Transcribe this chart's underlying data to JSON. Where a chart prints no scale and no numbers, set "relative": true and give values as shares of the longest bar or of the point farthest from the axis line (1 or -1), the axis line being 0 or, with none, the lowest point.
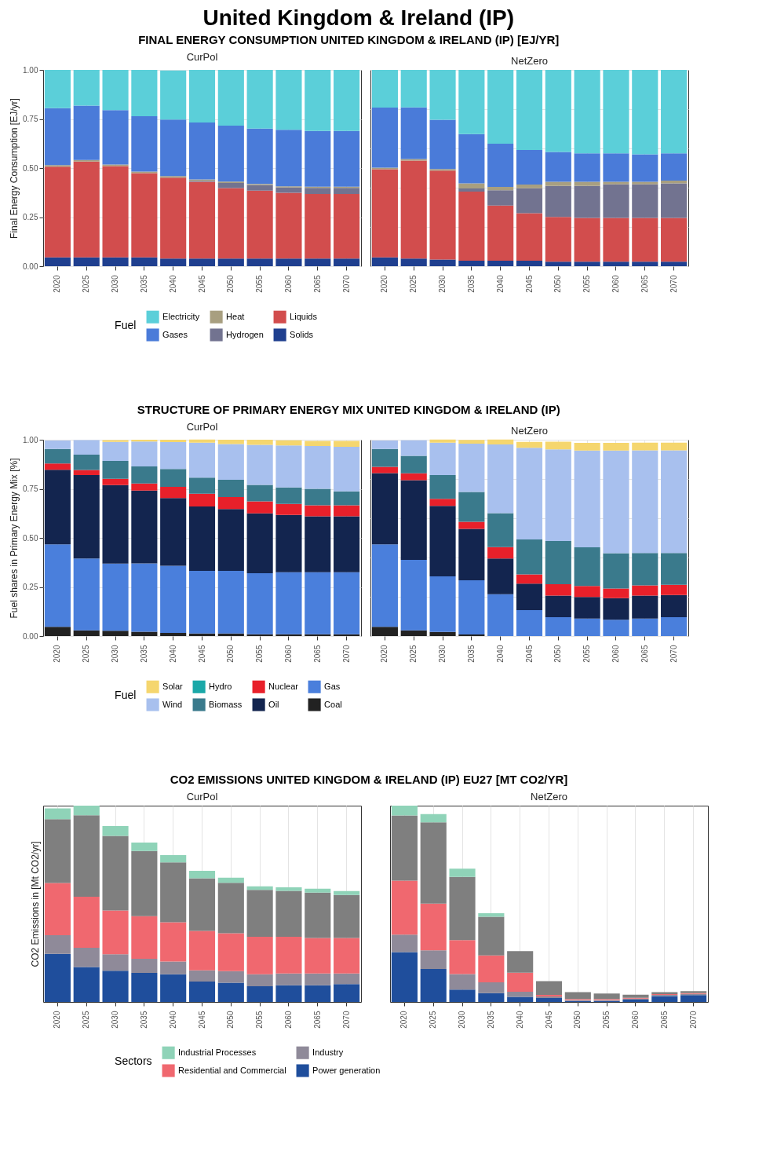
{
  "chart_data": [
    {
      "type": "other",
      "title": "United Kingdom & Ireland (IP)"
    },
    {
      "type": "bar",
      "subtitle": "FINAL ENERGY CONSUMPTION UNITED KINGDOM & IRELAND (IP) [EJ/YR]",
      "title": "CurPol",
      "ylabel": "Final Energy Consumption [EJ/yr]",
      "legend_title": "Fuel",
      "legend": "bottom",
      "stacked": true,
      "grid": true,
      "ylim": [
        0,
        1
      ],
      "yticks": [
        {
          "value": 0,
          "label": "0.00"
        },
        {
          "value": 0.25,
          "label": "0.25"
        },
        {
          "value": 0.5,
          "label": "0.50"
        },
        {
          "value": 0.75,
          "label": "0.75"
        },
        {
          "value": 1,
          "label": "1.00"
        }
      ],
      "categories": [
        "2020",
        "2025",
        "2030",
        "2035",
        "2040",
        "2045",
        "2050",
        "2055",
        "2060",
        "2065",
        "2070"
      ],
      "series": [
        {
          "name": "Solids",
          "color": "#1f3f8f",
          "values": [
            0.045,
            0.045,
            0.045,
            0.045,
            0.039,
            0.039,
            0.039,
            0.039,
            0.039,
            0.039,
            0.039
          ]
        },
        {
          "name": "Liquids",
          "color": "#d24d4d",
          "values": [
            0.462,
            0.488,
            0.465,
            0.429,
            0.412,
            0.391,
            0.359,
            0.346,
            0.335,
            0.329,
            0.329
          ]
        },
        {
          "name": "Hydrogen",
          "color": "#727390",
          "values": [
            0,
            0,
            0,
            0,
            null,
            0.005,
            0.026,
            0.028,
            0.027,
            0.031,
            0.031
          ]
        },
        {
          "name": "Heat",
          "color": "#a89f80",
          "values": [
            0.008,
            0.008,
            0.008,
            0.008,
            0.008,
            0.007,
            0.007,
            0.006,
            0.006,
            0.006,
            0.006
          ]
        },
        {
          "name": "Gases",
          "color": "#4a7bd9",
          "values": [
            0.29,
            0.277,
            0.277,
            0.282,
            0.288,
            0.29,
            0.285,
            0.282,
            0.288,
            0.284,
            0.284
          ]
        },
        {
          "name": "Electricity",
          "color": "#5bcfd9",
          "values": [
            0.195,
            0.182,
            0.205,
            0.236,
            0.25,
            0.268,
            0.284,
            0.299,
            0.305,
            0.311,
            0.311
          ]
        }
      ]
    },
    {
      "type": "bar",
      "title": "NetZero",
      "tick_labels": "x",
      "stacked": true,
      "grid": true,
      "ylim": [
        0,
        1
      ],
      "categories": [
        "2020",
        "2025",
        "2030",
        "2035",
        "2040",
        "2045",
        "2050",
        "2055",
        "2060",
        "2065",
        "2070"
      ],
      "series": [
        {
          "color": "#1f3f8f",
          "values": [
            0.045,
            0.039,
            0.034,
            0.028,
            0.028,
            0.028,
            0.023,
            0.023,
            0.023,
            0.023,
            0.023
          ]
        },
        {
          "color": "#d24d4d",
          "values": [
            0.449,
            0.499,
            0.453,
            0.352,
            0.281,
            0.242,
            0.228,
            0.223,
            0.223,
            0.223,
            0.223
          ]
        },
        {
          "color": "#727390",
          "values": [
            0,
            0,
            0,
            0.016,
            0.078,
            0.127,
            0.158,
            0.163,
            0.171,
            0.171,
            0.176
          ]
        },
        {
          "color": "#a89f80",
          "values": [
            0.008,
            0.008,
            0.008,
            0.026,
            0.017,
            0.019,
            0.021,
            0.021,
            0.013,
            0.013,
            0.014
          ]
        },
        {
          "color": "#4a7bd9",
          "values": [
            0.306,
            0.263,
            0.251,
            0.251,
            0.22,
            0.176,
            0.152,
            0.145,
            0.145,
            0.14,
            0.139
          ]
        },
        {
          "color": "#5bcfd9",
          "values": [
            0.192,
            0.191,
            0.254,
            0.327,
            0.376,
            0.408,
            0.418,
            0.425,
            0.425,
            0.43,
            0.425
          ]
        }
      ]
    },
    {
      "type": "bar",
      "subtitle": "STRUCTURE OF PRIMARY ENERGY MIX UNITED KINGDOM & IRELAND (IP)",
      "title": "CurPol",
      "ylabel": "Fuel shares in Primary Energy Mix [%]",
      "legend_title": "Fuel",
      "legend": "bottom",
      "stacked": true,
      "grid": true,
      "ylim": [
        0,
        1
      ],
      "yticks": [
        {
          "value": 0,
          "label": "0.00"
        },
        {
          "value": 0.25,
          "label": "0.25"
        },
        {
          "value": 0.5,
          "label": "0.50"
        },
        {
          "value": 0.75,
          "label": "0.75"
        },
        {
          "value": 1,
          "label": "1.00"
        }
      ],
      "categories": [
        "2020",
        "2025",
        "2030",
        "2035",
        "2040",
        "2045",
        "2050",
        "2055",
        "2060",
        "2065",
        "2070"
      ],
      "series": [
        {
          "name": "Coal",
          "color": "#222222",
          "values": [
            0.047,
            0.029,
            0.027,
            0.022,
            0.016,
            0.013,
            0.013,
            0.009,
            0.009,
            0.009,
            0.009
          ]
        },
        {
          "name": "Gas",
          "color": "#4a7fdc",
          "values": [
            0.42,
            0.366,
            0.342,
            0.348,
            0.342,
            0.319,
            0.319,
            0.311,
            0.316,
            0.316,
            0.316
          ]
        },
        {
          "name": "Oil",
          "color": "#13254f",
          "values": [
            0.38,
            0.425,
            0.4,
            0.371,
            0.345,
            0.328,
            0.315,
            0.305,
            0.292,
            0.285,
            0.285
          ]
        },
        {
          "name": "Nuclear",
          "color": "#e8202a",
          "values": [
            0.032,
            0.026,
            0.032,
            0.036,
            0.057,
            0.065,
            0.061,
            0.061,
            0.056,
            0.056,
            0.056
          ]
        },
        {
          "name": "Biomass",
          "color": "#3a7a8c",
          "values": [
            0.074,
            0.078,
            0.091,
            0.087,
            0.091,
            0.082,
            0.088,
            0.084,
            0.084,
            0.084,
            0.071
          ]
        },
        {
          "name": "Hydro",
          "color": "#1aa8a8",
          "values": [
            0,
            0,
            0,
            0,
            0,
            0,
            0,
            0,
            0,
            0,
            0
          ]
        },
        {
          "name": "Wind",
          "color": "#a8c0ee",
          "values": [
            0.043,
            0.074,
            0.097,
            0.127,
            0.137,
            0.178,
            0.182,
            0.204,
            0.214,
            0.218,
            0.227
          ]
        },
        {
          "name": "Solar",
          "color": "#f5d66e",
          "values": [
            0,
            0,
            0.009,
            0.009,
            0.012,
            0.016,
            0.022,
            0.026,
            0.026,
            0.026,
            0.03
          ]
        }
      ]
    },
    {
      "type": "bar",
      "title": "NetZero",
      "tick_labels": "x",
      "stacked": true,
      "grid": true,
      "ylim": [
        0,
        1
      ],
      "categories": [
        "2020",
        "2025",
        "2030",
        "2035",
        "2040",
        "2045",
        "2050",
        "2055",
        "2060",
        "2065",
        "2070"
      ],
      "series": [
        {
          "color": "#222222",
          "values": [
            0.047,
            0.029,
            0.021,
            0.008,
            0,
            0,
            0,
            0,
            0,
            0,
            0
          ]
        },
        {
          "color": "#4a7fdc",
          "values": [
            0.42,
            0.359,
            0.283,
            0.276,
            0.213,
            0.132,
            0.096,
            0.089,
            0.083,
            0.089,
            0.096
          ]
        },
        {
          "color": "#13254f",
          "values": [
            0.363,
            0.406,
            0.359,
            0.262,
            0.182,
            0.135,
            0.11,
            0.11,
            0.11,
            0.117,
            0.113
          ]
        },
        {
          "color": "#e8202a",
          "values": [
            0.032,
            0.035,
            0.036,
            0.036,
            0.058,
            0.047,
            0.058,
            0.056,
            0.049,
            0.052,
            0.052
          ]
        },
        {
          "color": "#3a7a8c",
          "values": [
            0.091,
            0.089,
            0.121,
            0.152,
            0.173,
            0.178,
            0.22,
            0.197,
            0.18,
            0.165,
            0.162
          ]
        },
        {
          "color": "#1aa8a8",
          "values": [
            0,
            0,
            0,
            0,
            0,
            0,
            0,
            0,
            0,
            0,
            0
          ]
        },
        {
          "color": "#a8c0ee",
          "values": [
            0.043,
            0.079,
            0.165,
            0.246,
            0.35,
            0.467,
            0.467,
            0.493,
            0.523,
            0.523,
            0.523
          ]
        },
        {
          "color": "#f5d66e",
          "values": [
            0,
            0,
            0.016,
            0.019,
            0.025,
            0.03,
            0.039,
            0.039,
            0.039,
            0.039,
            0.039
          ]
        }
      ]
    },
    {
      "type": "bar",
      "subtitle": "CO2 EMISSIONS UNITED KINGDOM & IRELAND (IP) EU27 [MT CO2/YR]",
      "title": "CurPol",
      "ylabel": "CO2 Emissions in [Mt CO2/yr]",
      "legend_title": "Sectors",
      "legend": "bottom",
      "stacked": true,
      "grid": "x",
      "relative": true,
      "categories": [
        "2020",
        "2025",
        "2030",
        "2035",
        "2040",
        "2045",
        "2050",
        "2055",
        "2060",
        "2065",
        "2070"
      ],
      "series": [
        {
          "name": "Power generation",
          "color": "#1f4e9c",
          "values": [
            0.245,
            0.178,
            0.159,
            0.148,
            0.141,
            0.104,
            0.098,
            0.08,
            0.085,
            0.085,
            0.091
          ]
        },
        {
          "name": "Industry",
          "color": "#8f8a99",
          "values": [
            0.095,
            0.098,
            0.084,
            0.072,
            0.065,
            0.057,
            0.059,
            0.061,
            0.06,
            0.06,
            0.054
          ]
        },
        {
          "name": "Residential and Commercial",
          "color": "#f0686f",
          "values": [
            0.266,
            0.26,
            0.223,
            0.217,
            0.2,
            0.201,
            0.193,
            0.191,
            0.187,
            0.181,
            0.181
          ]
        },
        {
          "color": "#7f7f7f",
          "values": [
            0.325,
            0.415,
            0.38,
            0.332,
            0.305,
            0.268,
            0.257,
            0.239,
            0.234,
            0.231,
            0.219
          ]
        },
        {
          "name": "Industrial Processes",
          "color": "#8fd3b8",
          "values": [
            0.055,
            0.049,
            0.05,
            0.043,
            0.037,
            0.038,
            0.026,
            0.018,
            0.018,
            0.02,
            0.02
          ]
        }
      ]
    },
    {
      "type": "bar",
      "title": "NetZero",
      "tick_labels": "x",
      "stacked": true,
      "grid": "x",
      "relative": true,
      "categories": [
        "2020",
        "2025",
        "2030",
        "2035",
        "2040",
        "2045",
        "2050",
        "2055",
        "2060",
        "2065",
        "2070"
      ],
      "series": [
        {
          "color": "#1f4e9c",
          "values": [
            0.254,
            0.168,
            0.063,
            0.045,
            0.026,
            0.02,
            0.005,
            0.005,
            0.012,
            0.03,
            0.035
          ]
        },
        {
          "color": "#8f8a99",
          "values": [
            0.089,
            0.095,
            0.079,
            0.055,
            0.026,
            0.008,
            0.005,
            0.005,
            0.005,
            0.006,
            0.006
          ]
        },
        {
          "color": "#f0686f",
          "values": [
            0.275,
            0.238,
            0.173,
            0.137,
            0.097,
            0.008,
            0.005,
            0.005,
            0.004,
            0.004,
            0.004
          ]
        },
        {
          "color": "#7f7f7f",
          "values": [
            0.332,
            0.414,
            0.322,
            0.197,
            0.11,
            0.07,
            0.035,
            0.028,
            0.016,
            0.01,
            0.01
          ]
        },
        {
          "color": "#8fd3b8",
          "values": [
            0.05,
            0.042,
            0.042,
            0.018,
            0,
            0,
            0,
            0,
            0,
            0,
            0
          ]
        }
      ]
    }
  ]
}
